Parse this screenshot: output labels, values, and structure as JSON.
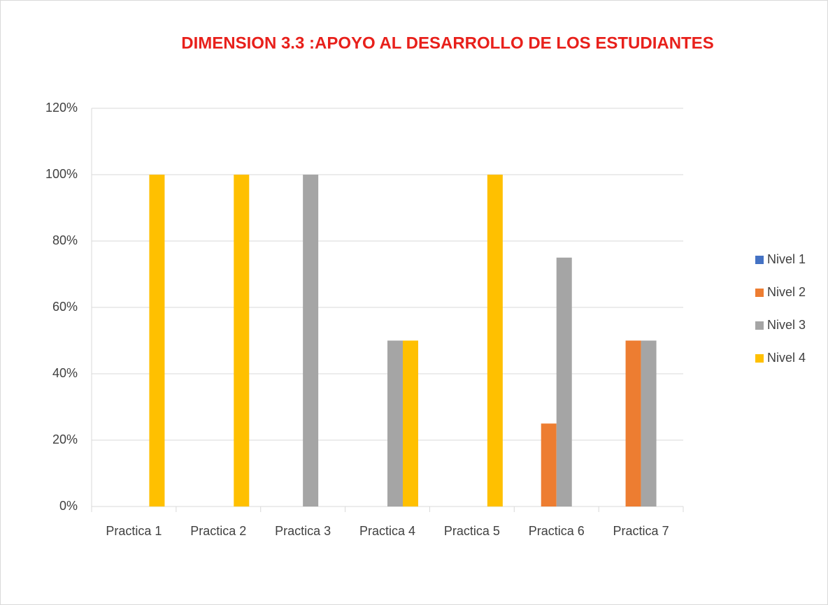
{
  "chart_data": {
    "type": "bar",
    "title": "DIMENSION 3.3 :APOYO AL DESARROLLO DE LOS ESTUDIANTES",
    "categories": [
      "Practica 1",
      "Practica 2",
      "Practica 3",
      "Practica 4",
      "Practica 5",
      "Practica 6",
      "Practica 7"
    ],
    "series": [
      {
        "name": "Nivel 1",
        "color": "#4472c4",
        "values": [
          0,
          0,
          0,
          0,
          0,
          0,
          0
        ]
      },
      {
        "name": "Nivel 2",
        "color": "#ed7d31",
        "values": [
          0,
          0,
          0,
          0,
          0,
          25,
          50
        ]
      },
      {
        "name": "Nivel 3",
        "color": "#a5a5a5",
        "values": [
          0,
          0,
          100,
          50,
          0,
          75,
          50
        ]
      },
      {
        "name": "Nivel 4",
        "color": "#ffc000",
        "values": [
          100,
          100,
          0,
          50,
          100,
          0,
          0
        ]
      }
    ],
    "ylim": [
      0,
      120
    ],
    "yticks": [
      {
        "value": 0,
        "label": "0%"
      },
      {
        "value": 20,
        "label": "20%"
      },
      {
        "value": 40,
        "label": "40%"
      },
      {
        "value": 60,
        "label": "60%"
      },
      {
        "value": 80,
        "label": "80%"
      },
      {
        "value": 100,
        "label": "100%"
      },
      {
        "value": 120,
        "label": "120%"
      }
    ],
    "grid": true,
    "legend": "right"
  }
}
